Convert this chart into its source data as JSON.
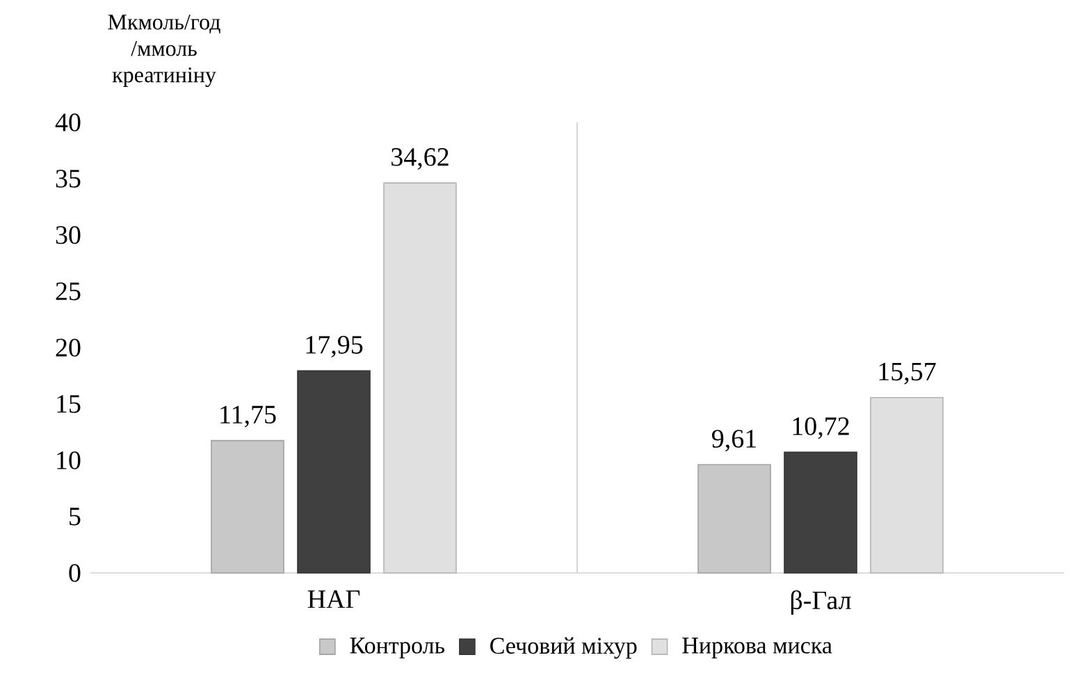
{
  "chart_data": {
    "type": "bar",
    "ylabel": "Мкмоль/год /ммоль креатиніну",
    "categories": [
      "НАГ",
      "β-Гал"
    ],
    "series": [
      {
        "name": "Контроль",
        "color": "#c8c8c8",
        "values": [
          11.75,
          9.61
        ],
        "value_labels": [
          "11,75",
          "9,61"
        ]
      },
      {
        "name": "Сечовий міхур",
        "color": "#404040",
        "values": [
          17.95,
          10.72
        ],
        "value_labels": [
          "17,95",
          "10,72"
        ]
      },
      {
        "name": "Ниркова миска",
        "color": "#e0e0e0",
        "values": [
          34.62,
          15.57
        ],
        "value_labels": [
          "34,62",
          "15,57"
        ]
      }
    ],
    "ylim": [
      0,
      40
    ],
    "yticks": [
      0,
      5,
      10,
      15,
      20,
      25,
      30,
      35,
      40
    ],
    "grid": "x",
    "legend": "bottom"
  }
}
